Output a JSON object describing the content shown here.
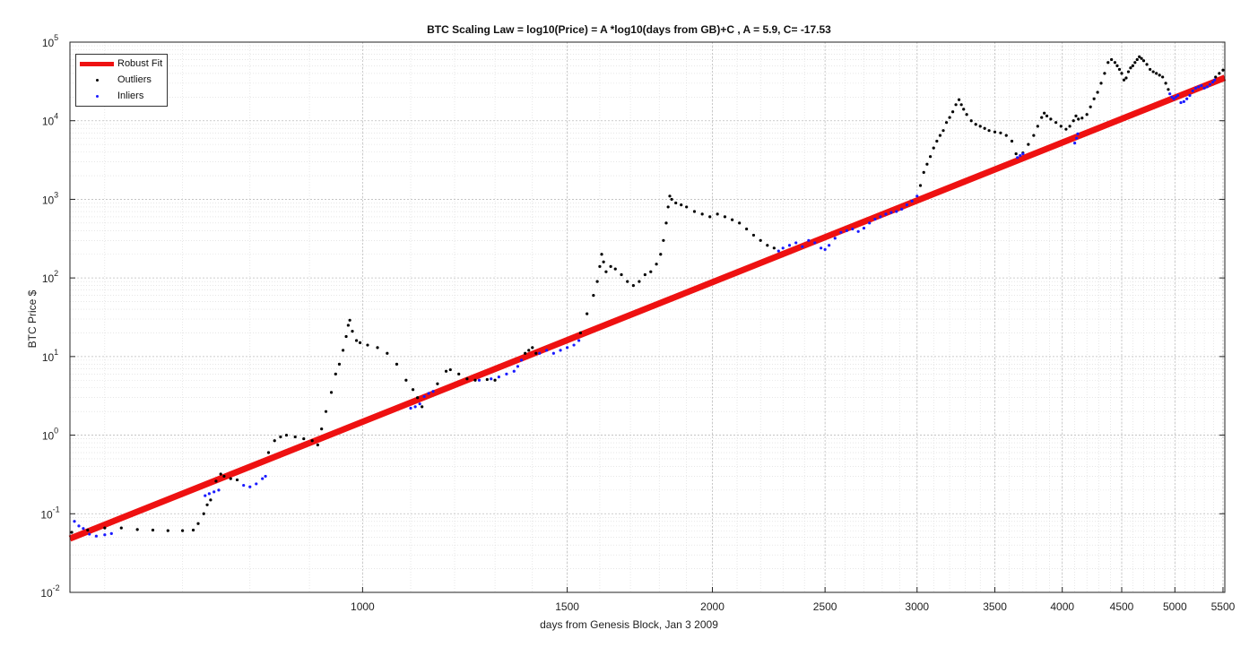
{
  "chart_data": {
    "type": "scatter",
    "title": "BTC Scaling Law = log10(Price) = A *log10(days from GB)+C , A = 5.9, C= -17.53",
    "xlabel": "days from Genesis Block, Jan 3 2009",
    "ylabel": "BTC Price $",
    "x_scale": "log",
    "y_scale": "log",
    "xlim": [
      560,
      5520
    ],
    "ylim": [
      0.01,
      100000
    ],
    "grid": true,
    "legend_placement": "top-left",
    "x_ticks": [
      {
        "value": 1000,
        "label": "1000"
      },
      {
        "value": 1500,
        "label": "1500"
      },
      {
        "value": 2000,
        "label": "2000"
      },
      {
        "value": 2500,
        "label": "2500"
      },
      {
        "value": 3000,
        "label": "3000"
      },
      {
        "value": 3500,
        "label": "3500"
      },
      {
        "value": 4000,
        "label": "4000"
      },
      {
        "value": 4500,
        "label": "4500"
      },
      {
        "value": 5000,
        "label": "5000"
      },
      {
        "value": 5500,
        "label": "5500"
      }
    ],
    "y_ticks": [
      {
        "value": 0.01,
        "base": "10",
        "exp": "-2"
      },
      {
        "value": 0.1,
        "base": "10",
        "exp": "-1"
      },
      {
        "value": 1,
        "base": "10",
        "exp": "0"
      },
      {
        "value": 10,
        "base": "10",
        "exp": "1"
      },
      {
        "value": 100,
        "base": "10",
        "exp": "2"
      },
      {
        "value": 1000,
        "base": "10",
        "exp": "3"
      },
      {
        "value": 10000,
        "base": "10",
        "exp": "4"
      },
      {
        "value": 100000,
        "base": "10",
        "exp": "5"
      }
    ],
    "fit": {
      "name": "Robust Fit",
      "A": 5.9,
      "C": -17.53,
      "color": "#ee1111"
    },
    "series": [
      {
        "name": "Outliers",
        "color": "#000000",
        "points": [
          [
            562,
            0.058
          ],
          [
            580,
            0.062
          ],
          [
            600,
            0.066
          ],
          [
            620,
            0.066
          ],
          [
            640,
            0.063
          ],
          [
            660,
            0.062
          ],
          [
            680,
            0.061
          ],
          [
            700,
            0.061
          ],
          [
            715,
            0.062
          ],
          [
            722,
            0.075
          ],
          [
            730,
            0.1
          ],
          [
            735,
            0.13
          ],
          [
            740,
            0.15
          ],
          [
            748,
            0.26
          ],
          [
            755,
            0.32
          ],
          [
            760,
            0.3
          ],
          [
            770,
            0.28
          ],
          [
            780,
            0.27
          ],
          [
            830,
            0.6
          ],
          [
            840,
            0.85
          ],
          [
            850,
            0.95
          ],
          [
            860,
            1.0
          ],
          [
            875,
            0.95
          ],
          [
            890,
            0.9
          ],
          [
            905,
            0.85
          ],
          [
            915,
            0.75
          ],
          [
            922,
            1.2
          ],
          [
            930,
            2.0
          ],
          [
            940,
            3.5
          ],
          [
            948,
            6
          ],
          [
            955,
            8
          ],
          [
            962,
            12
          ],
          [
            968,
            18
          ],
          [
            972,
            25
          ],
          [
            975,
            29
          ],
          [
            980,
            21
          ],
          [
            988,
            16
          ],
          [
            995,
            15
          ],
          [
            1010,
            14
          ],
          [
            1030,
            13
          ],
          [
            1050,
            11
          ],
          [
            1070,
            8
          ],
          [
            1090,
            5
          ],
          [
            1105,
            3.8
          ],
          [
            1115,
            3.0
          ],
          [
            1125,
            2.3
          ],
          [
            1160,
            4.5
          ],
          [
            1180,
            6.5
          ],
          [
            1190,
            6.8
          ],
          [
            1210,
            6.0
          ],
          [
            1230,
            5.2
          ],
          [
            1250,
            5.0
          ],
          [
            1280,
            5.1
          ],
          [
            1300,
            5.0
          ],
          [
            1380,
            11
          ],
          [
            1390,
            12
          ],
          [
            1400,
            13
          ],
          [
            1410,
            11
          ],
          [
            1540,
            20
          ],
          [
            1560,
            35
          ],
          [
            1580,
            60
          ],
          [
            1592,
            90
          ],
          [
            1600,
            140
          ],
          [
            1606,
            200
          ],
          [
            1612,
            160
          ],
          [
            1620,
            120
          ],
          [
            1635,
            140
          ],
          [
            1650,
            130
          ],
          [
            1670,
            110
          ],
          [
            1690,
            90
          ],
          [
            1710,
            80
          ],
          [
            1730,
            90
          ],
          [
            1750,
            110
          ],
          [
            1770,
            120
          ],
          [
            1790,
            150
          ],
          [
            1805,
            200
          ],
          [
            1815,
            300
          ],
          [
            1825,
            500
          ],
          [
            1832,
            800
          ],
          [
            1838,
            1100
          ],
          [
            1845,
            1000
          ],
          [
            1860,
            900
          ],
          [
            1880,
            850
          ],
          [
            1900,
            800
          ],
          [
            1930,
            700
          ],
          [
            1960,
            650
          ],
          [
            1990,
            600
          ],
          [
            2020,
            650
          ],
          [
            2050,
            600
          ],
          [
            2080,
            550
          ],
          [
            2110,
            500
          ],
          [
            2140,
            420
          ],
          [
            2170,
            350
          ],
          [
            2200,
            300
          ],
          [
            2230,
            260
          ],
          [
            2260,
            240
          ],
          [
            3020,
            1500
          ],
          [
            3040,
            2200
          ],
          [
            3060,
            2800
          ],
          [
            3080,
            3500
          ],
          [
            3100,
            4500
          ],
          [
            3120,
            5500
          ],
          [
            3140,
            6500
          ],
          [
            3160,
            7500
          ],
          [
            3180,
            9500
          ],
          [
            3200,
            11000
          ],
          [
            3220,
            13000
          ],
          [
            3240,
            16000
          ],
          [
            3260,
            18500
          ],
          [
            3275,
            16000
          ],
          [
            3290,
            14000
          ],
          [
            3310,
            12000
          ],
          [
            3340,
            10000
          ],
          [
            3370,
            9000
          ],
          [
            3400,
            8500
          ],
          [
            3430,
            8000
          ],
          [
            3460,
            7500
          ],
          [
            3500,
            7200
          ],
          [
            3540,
            7000
          ],
          [
            3580,
            6500
          ],
          [
            3620,
            5500
          ],
          [
            3650,
            3800
          ],
          [
            3700,
            3900
          ],
          [
            3740,
            5000
          ],
          [
            3780,
            6500
          ],
          [
            3810,
            8500
          ],
          [
            3840,
            11000
          ],
          [
            3860,
            12500
          ],
          [
            3880,
            11500
          ],
          [
            3910,
            10500
          ],
          [
            3950,
            9500
          ],
          [
            3990,
            8500
          ],
          [
            4030,
            7800
          ],
          [
            4060,
            8500
          ],
          [
            4090,
            10000
          ],
          [
            4110,
            11500
          ],
          [
            4130,
            10500
          ],
          [
            4160,
            10800
          ],
          [
            4200,
            12000
          ],
          [
            4230,
            15000
          ],
          [
            4260,
            19000
          ],
          [
            4290,
            23000
          ],
          [
            4320,
            30000
          ],
          [
            4350,
            40000
          ],
          [
            4380,
            55000
          ],
          [
            4410,
            60000
          ],
          [
            4440,
            55000
          ],
          [
            4460,
            50000
          ],
          [
            4480,
            45000
          ],
          [
            4500,
            40000
          ],
          [
            4520,
            33000
          ],
          [
            4540,
            35000
          ],
          [
            4560,
            42000
          ],
          [
            4580,
            47000
          ],
          [
            4600,
            50000
          ],
          [
            4620,
            55000
          ],
          [
            4640,
            60000
          ],
          [
            4660,
            65000
          ],
          [
            4680,
            62000
          ],
          [
            4700,
            58000
          ],
          [
            4730,
            52000
          ],
          [
            4760,
            45000
          ],
          [
            4790,
            42000
          ],
          [
            4820,
            40000
          ],
          [
            4850,
            38000
          ],
          [
            4880,
            36000
          ],
          [
            4910,
            30000
          ],
          [
            4935,
            25000
          ],
          [
            5420,
            36000
          ],
          [
            5460,
            40000
          ],
          [
            5500,
            44000
          ]
        ]
      },
      {
        "name": "Inliers",
        "color": "#1a1aff",
        "points": [
          [
            565,
            0.08
          ],
          [
            570,
            0.07
          ],
          [
            575,
            0.065
          ],
          [
            582,
            0.055
          ],
          [
            590,
            0.052
          ],
          [
            600,
            0.054
          ],
          [
            608,
            0.056
          ],
          [
            732,
            0.17
          ],
          [
            738,
            0.18
          ],
          [
            745,
            0.19
          ],
          [
            752,
            0.2
          ],
          [
            790,
            0.23
          ],
          [
            800,
            0.22
          ],
          [
            810,
            0.24
          ],
          [
            820,
            0.28
          ],
          [
            825,
            0.3
          ],
          [
            1100,
            2.2
          ],
          [
            1110,
            2.3
          ],
          [
            1120,
            2.5
          ],
          [
            1130,
            3.1
          ],
          [
            1140,
            3.4
          ],
          [
            1150,
            3.6
          ],
          [
            1260,
            5.0
          ],
          [
            1290,
            5.2
          ],
          [
            1310,
            5.5
          ],
          [
            1330,
            6.0
          ],
          [
            1350,
            6.5
          ],
          [
            1360,
            7.5
          ],
          [
            1370,
            9
          ],
          [
            1420,
            11
          ],
          [
            1440,
            12
          ],
          [
            1460,
            11
          ],
          [
            1480,
            12
          ],
          [
            1500,
            13
          ],
          [
            1520,
            14
          ],
          [
            1535,
            16
          ],
          [
            2280,
            220
          ],
          [
            2300,
            240
          ],
          [
            2330,
            260
          ],
          [
            2360,
            280
          ],
          [
            2390,
            250
          ],
          [
            2420,
            300
          ],
          [
            2450,
            280
          ],
          [
            2480,
            240
          ],
          [
            2500,
            230
          ],
          [
            2520,
            260
          ],
          [
            2550,
            320
          ],
          [
            2580,
            380
          ],
          [
            2610,
            400
          ],
          [
            2640,
            420
          ],
          [
            2670,
            390
          ],
          [
            2700,
            430
          ],
          [
            2730,
            500
          ],
          [
            2760,
            560
          ],
          [
            2790,
            600
          ],
          [
            2820,
            650
          ],
          [
            2850,
            680
          ],
          [
            2880,
            700
          ],
          [
            2910,
            750
          ],
          [
            2940,
            850
          ],
          [
            2970,
            950
          ],
          [
            3000,
            1100
          ],
          [
            3660,
            3400
          ],
          [
            3680,
            3600
          ],
          [
            3700,
            3800
          ],
          [
            4100,
            5200
          ],
          [
            4115,
            6000
          ],
          [
            4125,
            6800
          ],
          [
            4950,
            22000
          ],
          [
            4970,
            20000
          ],
          [
            4990,
            19000
          ],
          [
            5010,
            20000
          ],
          [
            5030,
            21000
          ],
          [
            5060,
            17000
          ],
          [
            5090,
            17500
          ],
          [
            5120,
            19000
          ],
          [
            5150,
            21000
          ],
          [
            5180,
            24000
          ],
          [
            5210,
            26000
          ],
          [
            5240,
            27000
          ],
          [
            5270,
            28000
          ],
          [
            5300,
            26000
          ],
          [
            5330,
            27000
          ],
          [
            5360,
            29000
          ],
          [
            5390,
            31000
          ],
          [
            5410,
            33000
          ]
        ]
      }
    ]
  },
  "legend": {
    "items": [
      {
        "label": "Robust Fit"
      },
      {
        "label": "Outliers"
      },
      {
        "label": "Inliers"
      }
    ]
  }
}
